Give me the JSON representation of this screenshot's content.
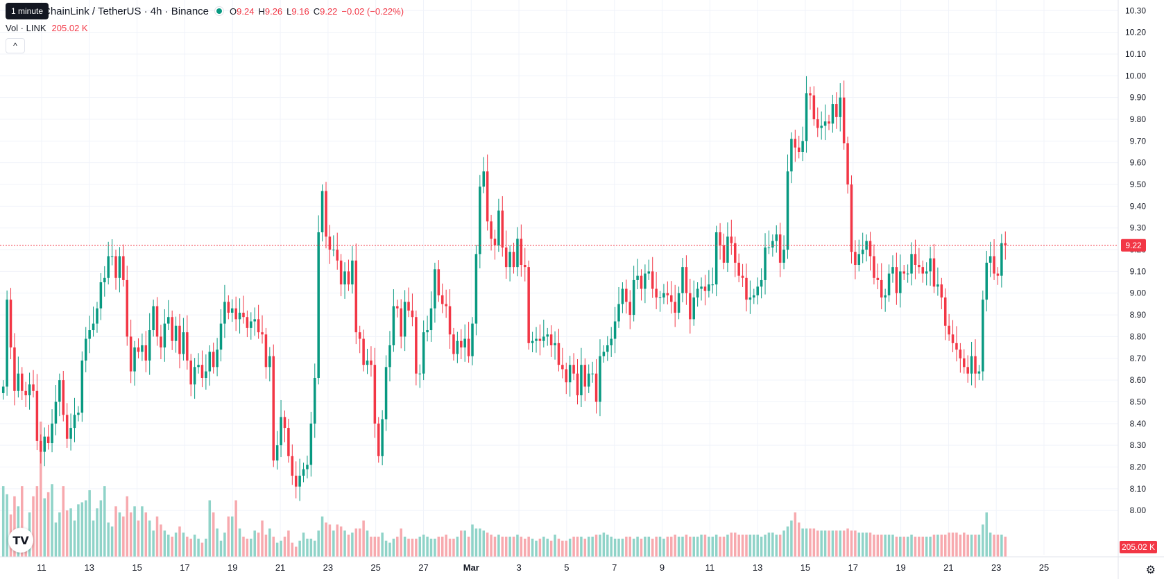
{
  "tooltip": "1 minute",
  "legend": {
    "symbol": "ChainLink / TetherUS · 4h · Binance",
    "open_label": "O",
    "open": "9.24",
    "high_label": "H",
    "high": "9.26",
    "low_label": "L",
    "low": "9.16",
    "close_label": "C",
    "close": "9.22",
    "change": "−0.02 (−0.22%)"
  },
  "volume_legend": {
    "label": "Vol · LINK",
    "value": "205.02 K"
  },
  "collapse_icon": "^",
  "logo_text": "TV",
  "settings_icon": "⚙",
  "colors": {
    "up": "#089981",
    "down": "#f23645",
    "up_volume": "#8fd3c8",
    "down_volume": "#f7a9ae",
    "grid": "#f0f3fa"
  },
  "chart_data": {
    "type": "candlestick",
    "price_axis": {
      "min": 7.94,
      "max": 10.32,
      "ticks": [
        "8.00",
        "8.10",
        "8.20",
        "8.30",
        "8.40",
        "8.50",
        "8.60",
        "8.70",
        "8.80",
        "8.90",
        "9.00",
        "9.10",
        "9.20",
        "9.30",
        "9.40",
        "9.50",
        "9.60",
        "9.70",
        "9.80",
        "9.90",
        "10.00",
        "10.10",
        "10.20",
        "10.30"
      ]
    },
    "time_axis": {
      "ticks": [
        "11",
        "13",
        "15",
        "17",
        "19",
        "21",
        "23",
        "25",
        "27",
        "Mar",
        "3",
        "5",
        "7",
        "9",
        "11",
        "13",
        "15",
        "17",
        "19",
        "21",
        "23",
        "25"
      ]
    },
    "last_price": "9.22",
    "last_volume": "205.02 K",
    "closes": [
      8.57,
      8.97,
      8.75,
      8.55,
      8.63,
      8.55,
      8.53,
      8.58,
      8.55,
      8.32,
      8.27,
      8.34,
      8.31,
      8.4,
      8.5,
      8.6,
      8.44,
      8.33,
      8.38,
      8.44,
      8.45,
      8.69,
      8.79,
      8.83,
      8.86,
      8.93,
      9.05,
      9.07,
      9.17,
      9.17,
      9.07,
      9.17,
      9.06,
      8.8,
      8.64,
      8.75,
      8.73,
      8.76,
      8.69,
      8.83,
      8.94,
      8.8,
      8.75,
      8.86,
      8.89,
      8.78,
      8.85,
      8.72,
      8.82,
      8.69,
      8.58,
      8.66,
      8.67,
      8.61,
      8.64,
      8.73,
      8.66,
      8.74,
      8.86,
      8.96,
      8.91,
      8.93,
      8.88,
      8.91,
      8.89,
      8.84,
      8.87,
      8.88,
      8.82,
      8.81,
      8.66,
      8.71,
      8.23,
      8.3,
      8.43,
      8.38,
      8.25,
      8.16,
      8.11,
      8.16,
      8.19,
      8.21,
      8.4,
      8.61,
      9.28,
      9.47,
      9.26,
      9.2,
      9.2,
      9.15,
      9.04,
      9.1,
      9.04,
      9.15,
      8.82,
      8.79,
      8.67,
      8.69,
      8.67,
      8.4,
      8.25,
      8.42,
      8.66,
      8.76,
      8.94,
      8.93,
      8.8,
      8.96,
      8.92,
      8.89,
      8.63,
      8.63,
      8.82,
      8.83,
      8.93,
      9.11,
      8.99,
      8.95,
      8.94,
      8.81,
      8.72,
      8.78,
      8.75,
      8.79,
      8.71,
      8.86,
      9.18,
      9.49,
      9.56,
      9.33,
      9.25,
      9.22,
      9.38,
      9.21,
      9.12,
      9.19,
      9.12,
      9.25,
      9.13,
      9.12,
      8.77,
      8.78,
      8.79,
      8.78,
      8.8,
      8.81,
      8.76,
      8.77,
      8.67,
      8.65,
      8.59,
      8.67,
      8.63,
      8.53,
      8.67,
      8.57,
      8.63,
      8.63,
      8.5,
      8.71,
      8.73,
      8.76,
      8.79,
      8.87,
      8.95,
      9.02,
      8.96,
      8.9,
      9.06,
      9.08,
      9.02,
      9.09,
      9.1,
      9.02,
      8.98,
      8.98,
      9.0,
      8.99,
      8.96,
      8.91,
      9.0,
      9.12,
      9.0,
      8.88,
      8.98,
      9.02,
      9.03,
      9.01,
      9.04,
      9.04,
      9.28,
      9.22,
      9.14,
      9.26,
      9.23,
      9.14,
      9.08,
      9.07,
      8.97,
      8.98,
      8.99,
      9.03,
      9.06,
      9.21,
      9.21,
      9.24,
      9.27,
      9.14,
      9.2,
      9.56,
      9.71,
      9.67,
      9.65,
      9.7,
      9.92,
      9.91,
      9.8,
      9.76,
      9.77,
      9.79,
      9.78,
      9.87,
      9.81,
      9.9,
      9.69,
      9.5,
      9.19,
      9.13,
      9.18,
      9.2,
      9.24,
      9.17,
      9.07,
      9.06,
      8.98,
      8.99,
      9.09,
      9.12,
      9.0,
      9.1,
      9.09,
      9.09,
      9.18,
      9.13,
      9.12,
      9.09,
      9.1,
      9.16,
      9.03,
      9.04,
      8.98,
      8.85,
      8.81,
      8.77,
      8.74,
      8.7,
      8.66,
      8.63,
      8.71,
      8.63,
      8.64,
      8.97,
      9.14,
      9.17,
      9.09,
      9.08,
      9.23,
      9.22
    ],
    "volumes": [
      35,
      31,
      21,
      30,
      25,
      35,
      10,
      22,
      30,
      35,
      67,
      29,
      32,
      36,
      17,
      22,
      35,
      23,
      24,
      18,
      26,
      27,
      28,
      33,
      18,
      24,
      28,
      35,
      17,
      15,
      25,
      22,
      20,
      30,
      22,
      25,
      18,
      25,
      22,
      18,
      13,
      20,
      16,
      13,
      11,
      10,
      12,
      15,
      12,
      10,
      9,
      11,
      9,
      7,
      9,
      28,
      22,
      14,
      8,
      12,
      20,
      20,
      28,
      14,
      10,
      9,
      9,
      13,
      12,
      18,
      11,
      14,
      10,
      7,
      8,
      10,
      13,
      7,
      5,
      8,
      12,
      9,
      9,
      8,
      13,
      20,
      17,
      16,
      13,
      16,
      15,
      13,
      11,
      12,
      14,
      14,
      18,
      13,
      10,
      10,
      10,
      12,
      8,
      7,
      9,
      10,
      14,
      10,
      9,
      9,
      9,
      10,
      11,
      10,
      9,
      9,
      10,
      10,
      11,
      9,
      9,
      10,
      13,
      13,
      10,
      16,
      14,
      14,
      13,
      12,
      11,
      10,
      11,
      10,
      10,
      10,
      10,
      11,
      10,
      9,
      10,
      9,
      8,
      9,
      10,
      9,
      8,
      11,
      9,
      8,
      8,
      9,
      10,
      10,
      10,
      9,
      10,
      10,
      11,
      11,
      12,
      11,
      10,
      9,
      9,
      9,
      10,
      10,
      9,
      10,
      9,
      10,
      10,
      9,
      10,
      10,
      9,
      10,
      10,
      11,
      10,
      10,
      11,
      10,
      10,
      10,
      11,
      11,
      10,
      10,
      11,
      10,
      10,
      11,
      12,
      12,
      11,
      11,
      11,
      11,
      11,
      11,
      10,
      11,
      12,
      12,
      11,
      11,
      13,
      15,
      18,
      22,
      17,
      14,
      14,
      14,
      14,
      13,
      13,
      13,
      13,
      13,
      13,
      13,
      13,
      14,
      13,
      13,
      12,
      12,
      12,
      12,
      11,
      11,
      11,
      11,
      11,
      11,
      10,
      10,
      10,
      10,
      11,
      10,
      10,
      10,
      10,
      10,
      11,
      11,
      11,
      11,
      12,
      12,
      12,
      11,
      12,
      11,
      11,
      11,
      11,
      16,
      22,
      12,
      11,
      11,
      11,
      10,
      10,
      10,
      9
    ]
  }
}
